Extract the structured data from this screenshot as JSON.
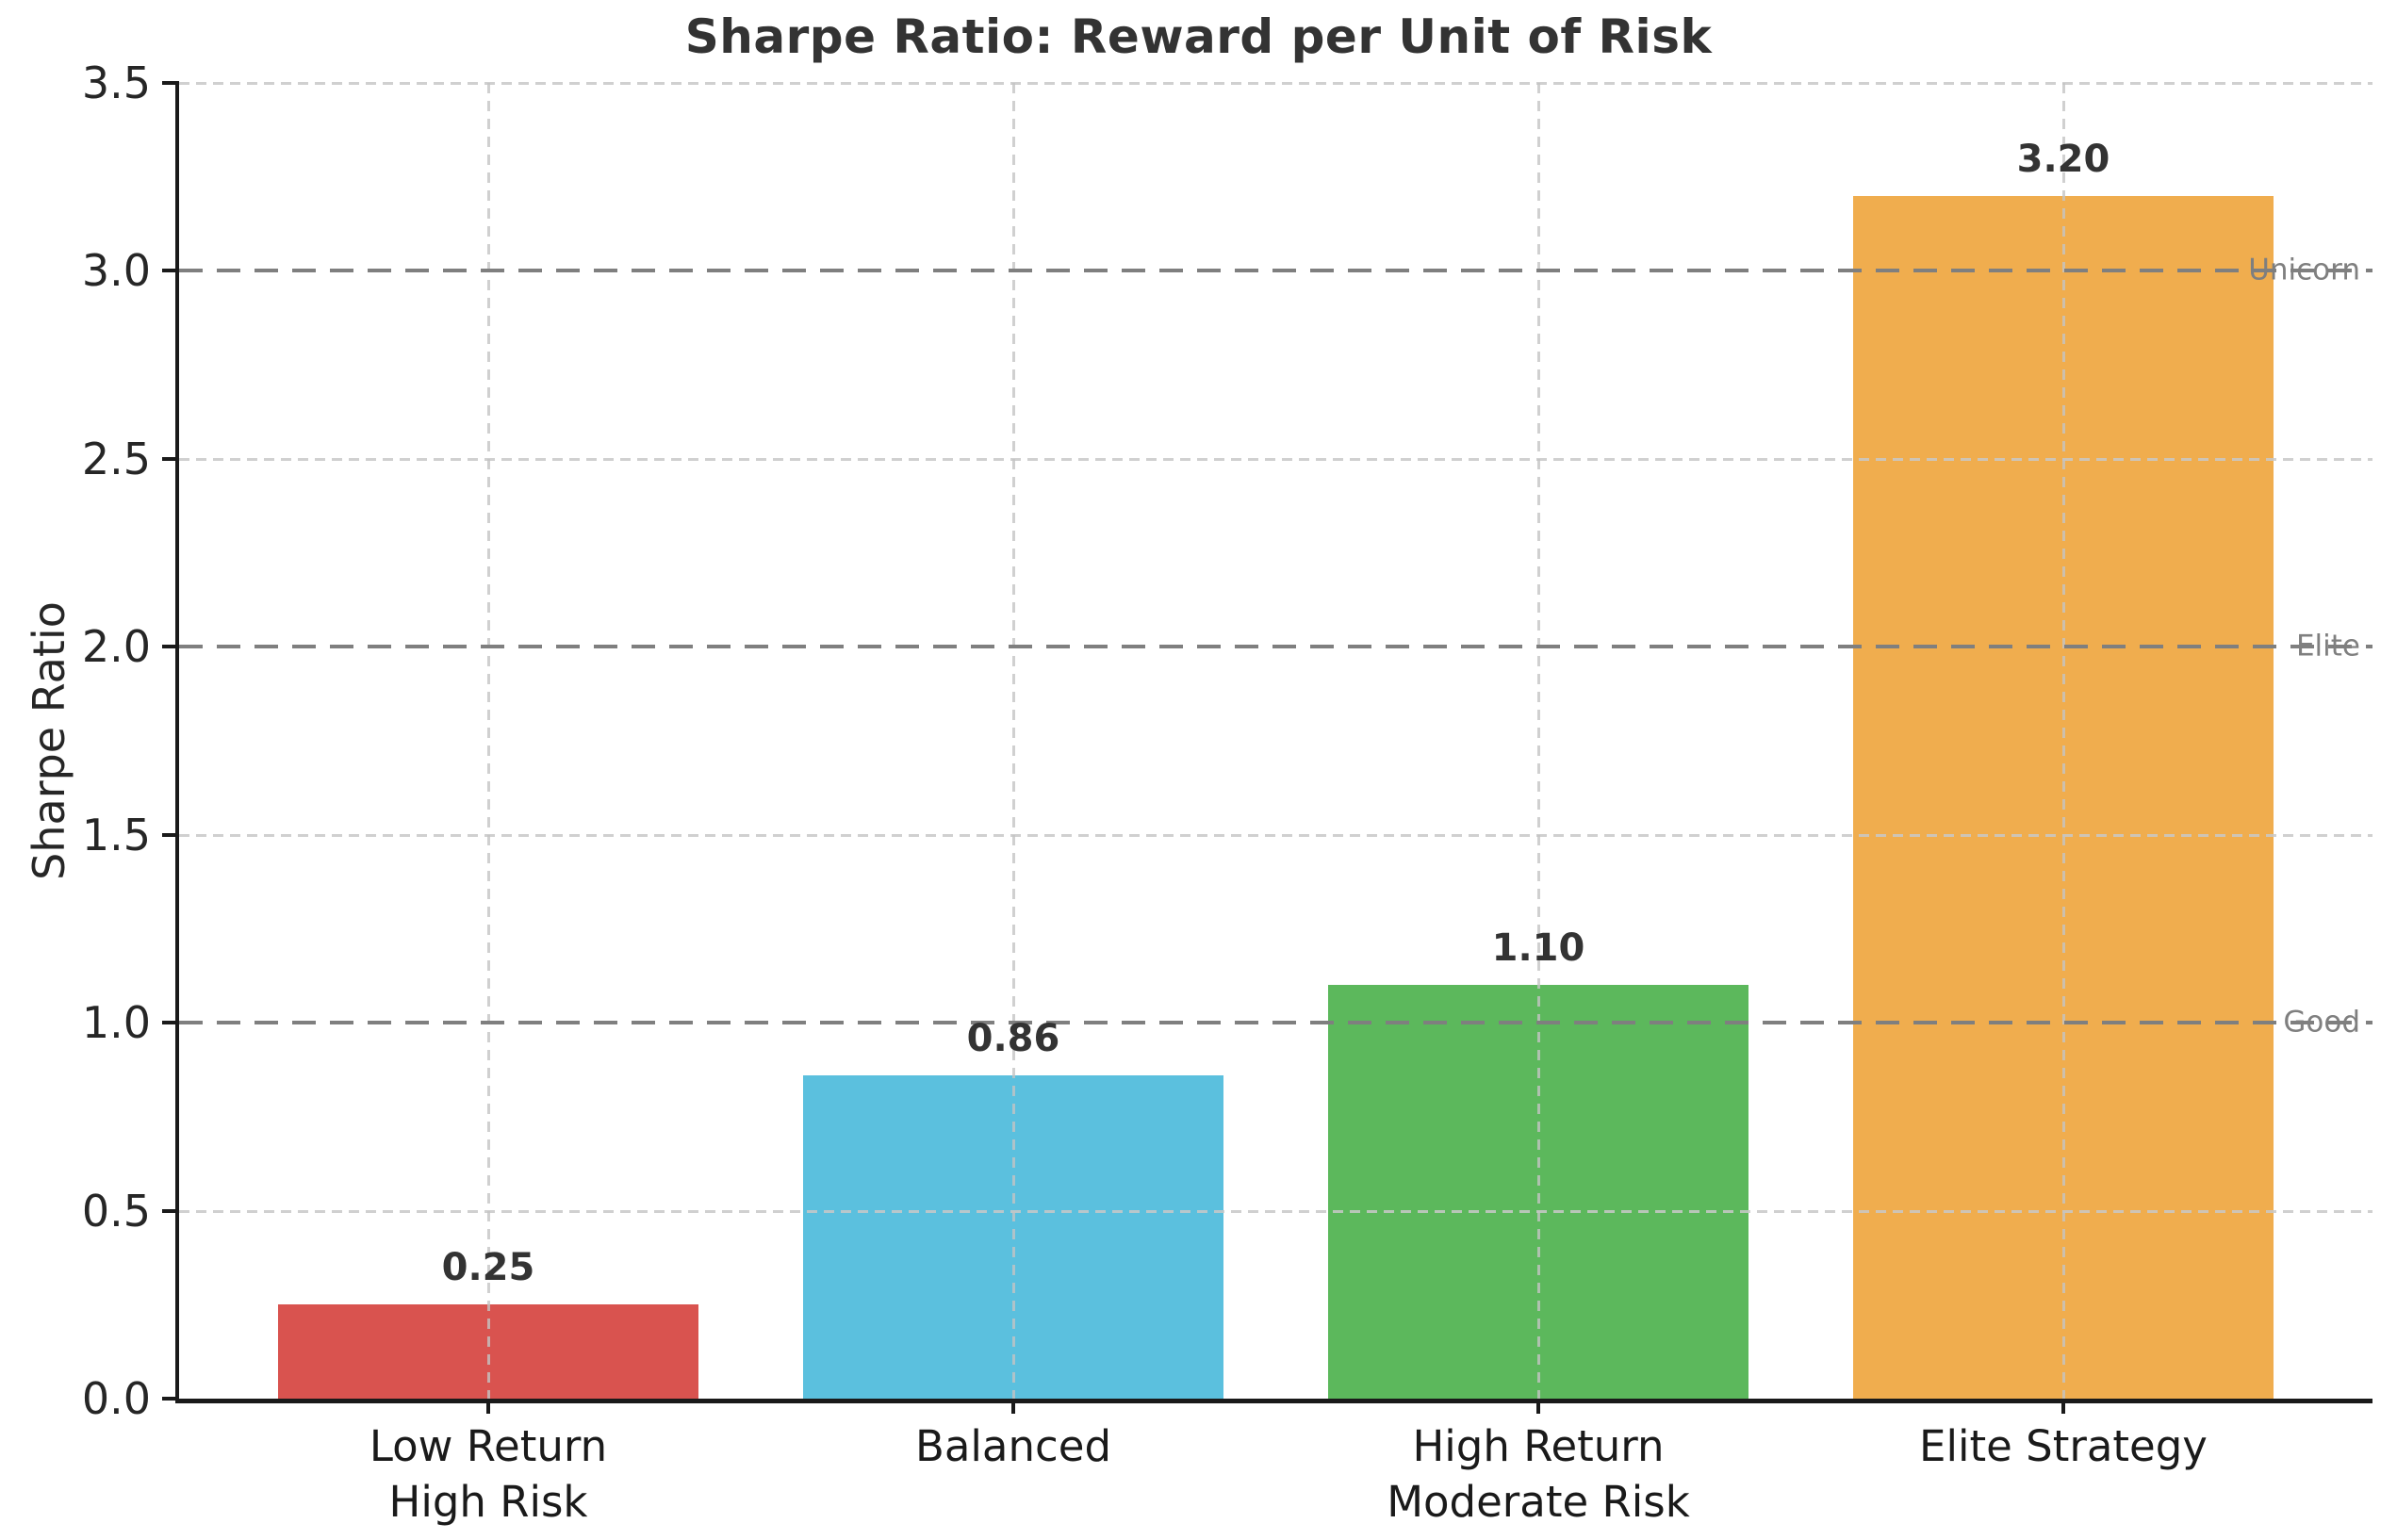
{
  "chart_data": {
    "type": "bar",
    "title": "Sharpe Ratio: Reward per Unit of Risk",
    "ylabel": "Sharpe Ratio",
    "ylim": [
      0,
      3.5
    ],
    "yticks": [
      "0.0",
      "0.5",
      "1.0",
      "1.5",
      "2.0",
      "2.5",
      "3.0",
      "3.5"
    ],
    "grid": true,
    "legend": "none",
    "categories": [
      "Low Return High Risk",
      "Balanced",
      "High Return Moderate Risk",
      "Elite Strategy"
    ],
    "category_label_lines": [
      [
        "Low Return",
        "High Risk"
      ],
      [
        "Balanced"
      ],
      [
        "High Return",
        "Moderate Risk"
      ],
      [
        "Elite Strategy"
      ]
    ],
    "values": [
      0.25,
      0.86,
      1.1,
      3.2
    ],
    "value_labels": [
      "0.25",
      "0.86",
      "1.10",
      "3.20"
    ],
    "bar_colors": [
      "#d9534f",
      "#5bc0de",
      "#5cb85c",
      "#f0ad4e"
    ],
    "reference_lines": [
      {
        "value": 1.0,
        "label": "Good"
      },
      {
        "value": 2.0,
        "label": "Elite"
      },
      {
        "value": 3.0,
        "label": "Unicorn"
      }
    ],
    "colors": {
      "title": "#333333",
      "tick_label": "#262626",
      "value_label": "#333333",
      "reference": "#7f7f7f",
      "grid_light": "#c8c8c8",
      "axis": "#1a1a1a"
    }
  }
}
